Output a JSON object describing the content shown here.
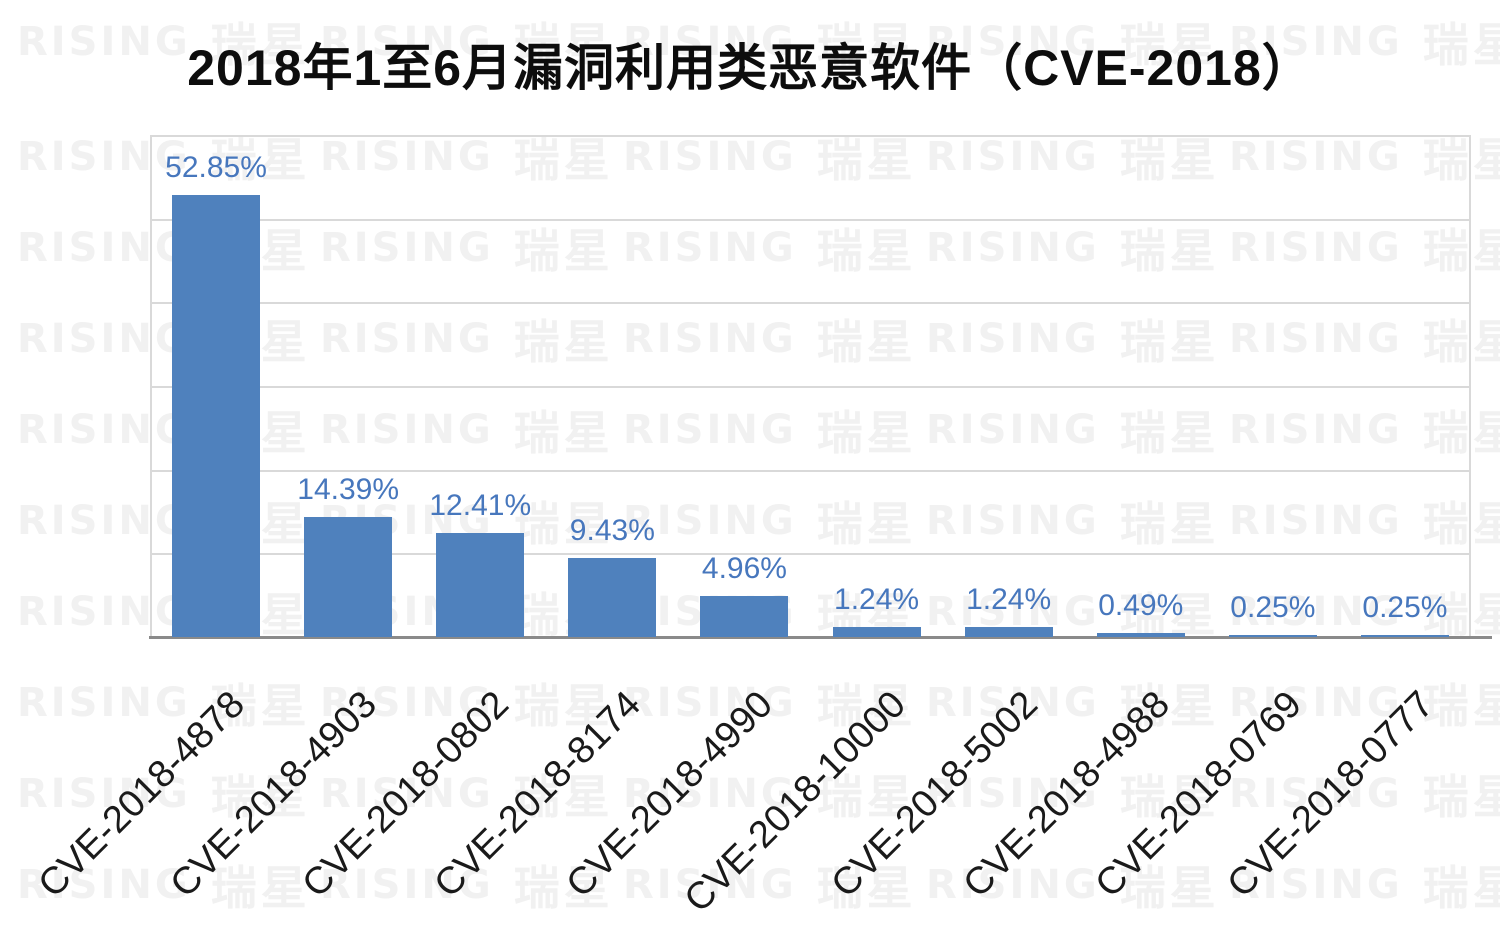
{
  "title": "2018年1至6月漏洞利用类恶意软件（CVE-2018）",
  "watermark": {
    "brand": "RISING",
    "cjk": "瑞星"
  },
  "chart_data": {
    "type": "bar",
    "title": "2018年1至6月漏洞利用类恶意软件（CVE-2018）",
    "categories": [
      "CVE-2018-4878",
      "CVE-2018-4903",
      "CVE-2018-0802",
      "CVE-2018-8174",
      "CVE-2018-4990",
      "CVE-2018-10000",
      "CVE-2018-5002",
      "CVE-2018-4988",
      "CVE-2018-0769",
      "CVE-2018-0777"
    ],
    "values": [
      52.85,
      14.39,
      12.41,
      9.43,
      4.96,
      1.24,
      1.24,
      0.49,
      0.25,
      0.25
    ],
    "value_labels": [
      "52.85%",
      "14.39%",
      "12.41%",
      "9.43%",
      "4.96%",
      "1.24%",
      "1.24%",
      "0.49%",
      "0.25%",
      "0.25%"
    ],
    "xlabel": "",
    "ylabel": "",
    "ylim": [
      0,
      60
    ],
    "gridline_step": 10,
    "grid": true,
    "legend": "none",
    "bar_color": "#4f81bd",
    "value_label_color": "#4777bd",
    "category_label_color": "#1a1a1a",
    "gridline_color": "#d9d9d9",
    "axis_color": "#8a8a8a"
  }
}
